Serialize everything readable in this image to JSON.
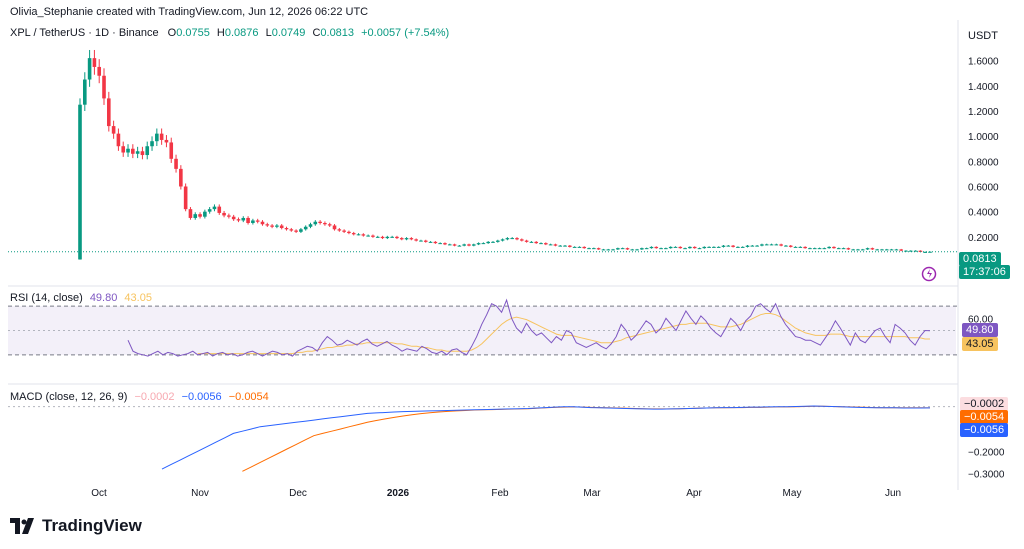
{
  "attribution": "Olivia_Stephanie created with TradingView.com, Jun 12, 2026 06:22 UTC",
  "symbol": "XPL / TetherUS · 1D · Binance",
  "ohlc": {
    "o_label": "O",
    "o": "0.0755",
    "h_label": "H",
    "h": "0.0876",
    "l_label": "L",
    "l": "0.0749",
    "c_label": "C",
    "c": "0.0813",
    "change": "+0.0057 (+7.54%)"
  },
  "currency": "USDT",
  "last_price": "0.0813",
  "countdown": "17:37:06",
  "rsi_legend": {
    "name": "RSI (14, close)",
    "rsi": "49.80",
    "ma": "43.05"
  },
  "rsi_tags": {
    "rsi": "49.80",
    "ma": "43.05"
  },
  "macd_legend": {
    "name": "MACD (close, 12, 26, 9)",
    "hist": "−0.0002",
    "macd": "−0.0056",
    "signal": "−0.0054"
  },
  "macd_tags": {
    "hist": "−0.0002",
    "signal": "−0.0054",
    "macd": "−0.0056"
  },
  "brand": "TradingView",
  "colors": {
    "up": "#089981",
    "down": "#f23645",
    "rsi": "#7e57c2",
    "rsi_ma": "#f7c35f",
    "macd": "#2962ff",
    "signal": "#ff6d00"
  },
  "chart_data": [
    {
      "type": "candlestick",
      "title": "XPL / TetherUS · 1D · Binance",
      "ylabel": "USDT",
      "ylim": [
        0,
        1.78
      ],
      "yticks": [
        "1.6000",
        "1.4000",
        "1.2000",
        "1.0000",
        "0.8000",
        "0.6000",
        "0.4000",
        "0.2000"
      ],
      "xticks": [
        "Oct",
        "Nov",
        "Dec",
        "2026",
        "Feb",
        "Mar",
        "Apr",
        "May",
        "Jun"
      ],
      "closes": [
        1.25,
        1.45,
        1.62,
        1.55,
        1.48,
        1.3,
        1.08,
        1.02,
        0.92,
        0.87,
        0.9,
        0.86,
        0.88,
        0.85,
        0.92,
        0.96,
        1.02,
        0.97,
        0.95,
        0.82,
        0.74,
        0.6,
        0.42,
        0.35,
        0.38,
        0.36,
        0.4,
        0.42,
        0.44,
        0.39,
        0.37,
        0.36,
        0.34,
        0.33,
        0.35,
        0.31,
        0.33,
        0.32,
        0.3,
        0.29,
        0.28,
        0.29,
        0.27,
        0.26,
        0.25,
        0.24,
        0.26,
        0.28,
        0.3,
        0.32,
        0.31,
        0.3,
        0.29,
        0.26,
        0.25,
        0.24,
        0.23,
        0.22,
        0.22,
        0.21,
        0.21,
        0.2,
        0.2,
        0.19,
        0.2,
        0.2,
        0.19,
        0.18,
        0.19,
        0.18,
        0.17,
        0.17,
        0.16,
        0.16,
        0.15,
        0.15,
        0.14,
        0.14,
        0.13,
        0.13,
        0.14,
        0.13,
        0.14,
        0.15,
        0.15,
        0.16,
        0.16,
        0.17,
        0.18,
        0.19,
        0.19,
        0.18,
        0.17,
        0.16,
        0.16,
        0.15,
        0.15,
        0.14,
        0.14,
        0.13,
        0.13,
        0.13,
        0.12,
        0.12,
        0.12,
        0.11,
        0.11,
        0.11,
        0.1,
        0.1,
        0.1,
        0.1,
        0.11,
        0.11,
        0.1,
        0.1,
        0.1,
        0.11,
        0.11,
        0.12,
        0.11,
        0.11,
        0.11,
        0.12,
        0.12,
        0.11,
        0.11,
        0.12,
        0.11,
        0.11,
        0.12,
        0.12,
        0.12,
        0.12,
        0.13,
        0.13,
        0.12,
        0.12,
        0.12,
        0.13,
        0.13,
        0.13,
        0.14,
        0.14,
        0.14,
        0.14,
        0.13,
        0.13,
        0.12,
        0.12,
        0.12,
        0.11,
        0.11,
        0.11,
        0.11,
        0.11,
        0.12,
        0.11,
        0.11,
        0.11,
        0.1,
        0.1,
        0.1,
        0.1,
        0.11,
        0.1,
        0.1,
        0.1,
        0.1,
        0.1,
        0.1,
        0.09,
        0.09,
        0.09,
        0.09,
        0.08,
        0.08,
        0.0813
      ],
      "last": 0.0813
    },
    {
      "type": "line",
      "title": "RSI (14, close)",
      "ylim": [
        20,
        80
      ],
      "yticks": [
        "60.00",
        "40.00"
      ],
      "bands": [
        30,
        70
      ],
      "series": [
        {
          "name": "RSI",
          "values": [
            42,
            33,
            31,
            30,
            29,
            31,
            33,
            30,
            32,
            31,
            29,
            30,
            31,
            33,
            30,
            31,
            32,
            29,
            31,
            32,
            30,
            31,
            29,
            30,
            32,
            33,
            31,
            29,
            31,
            33,
            32,
            30,
            31,
            29,
            33,
            35,
            37,
            36,
            33,
            40,
            45,
            42,
            38,
            39,
            42,
            40,
            38,
            41,
            43,
            39,
            37,
            39,
            41,
            38,
            36,
            33,
            35,
            34,
            33,
            37,
            35,
            32,
            31,
            33,
            30,
            34,
            35,
            32,
            30,
            37,
            45,
            55,
            63,
            72,
            70,
            65,
            75,
            60,
            52,
            48,
            56,
            50,
            46,
            48,
            44,
            40,
            45,
            42,
            50,
            48,
            40,
            38,
            36,
            38,
            40,
            37,
            35,
            39,
            45,
            55,
            50,
            42,
            46,
            52,
            58,
            55,
            48,
            52,
            60,
            55,
            50,
            58,
            66,
            60,
            55,
            62,
            58,
            52,
            48,
            45,
            52,
            60,
            56,
            50,
            58,
            62,
            70,
            72,
            68,
            65,
            72,
            62,
            55,
            50,
            45,
            44,
            42,
            42,
            40,
            38,
            44,
            50,
            58,
            52,
            45,
            38,
            48,
            42,
            40,
            45,
            50,
            52,
            45,
            40,
            55,
            52,
            48,
            42,
            38,
            45,
            50,
            49.8
          ]
        },
        {
          "name": "RSI-based MA",
          "values": [
            null,
            null,
            null,
            null,
            null,
            null,
            null,
            null,
            null,
            null,
            null,
            null,
            null,
            null,
            31,
            31,
            31,
            31,
            31,
            31,
            31,
            31,
            31,
            31,
            31,
            31,
            31,
            31,
            31,
            31,
            31,
            31,
            31,
            31,
            32,
            32,
            33,
            33,
            34,
            35,
            36,
            36,
            37,
            37,
            38,
            38,
            39,
            39,
            40,
            40,
            40,
            40,
            40,
            40,
            39,
            39,
            38,
            37,
            37,
            36,
            36,
            35,
            34,
            34,
            33,
            33,
            33,
            33,
            33,
            34,
            36,
            39,
            43,
            47,
            51,
            55,
            58,
            60,
            61,
            60,
            59,
            57,
            55,
            53,
            51,
            49,
            47,
            46,
            46,
            46,
            45,
            44,
            43,
            42,
            41,
            40,
            40,
            40,
            41,
            42,
            44,
            45,
            46,
            47,
            48,
            49,
            50,
            51,
            52,
            53,
            54,
            55,
            55,
            56,
            56,
            56,
            56,
            55,
            54,
            53,
            53,
            53,
            54,
            55,
            57,
            59,
            61,
            63,
            64,
            64,
            63,
            61,
            58,
            55,
            52,
            50,
            48,
            47,
            46,
            46,
            46,
            47,
            47,
            47,
            46,
            45,
            45,
            45,
            45,
            45,
            45,
            45,
            45,
            45,
            45,
            45,
            45,
            44,
            44,
            44,
            43,
            43.05
          ]
        }
      ]
    },
    {
      "type": "line",
      "title": "MACD (close, 12, 26, 9)",
      "ylim": [
        -0.32,
        0.03
      ],
      "yticks": [
        "−0.2000",
        "−0.3000"
      ],
      "series": [
        {
          "name": "MACD",
          "values": [
            -0.28,
            -0.26,
            -0.24,
            -0.22,
            -0.2,
            -0.18,
            -0.16,
            -0.14,
            -0.12,
            -0.11,
            -0.1,
            -0.09,
            -0.085,
            -0.08,
            -0.075,
            -0.07,
            -0.065,
            -0.06,
            -0.055,
            -0.05,
            -0.045,
            -0.04,
            -0.035,
            -0.03,
            -0.028,
            -0.026,
            -0.024,
            -0.022,
            -0.021,
            -0.02,
            -0.019,
            -0.018,
            -0.017,
            -0.016,
            -0.015,
            -0.014,
            -0.013,
            -0.012,
            -0.011,
            -0.01,
            -0.009,
            -0.008,
            -0.006,
            -0.004,
            -0.002,
            0.0,
            0.0,
            -0.002,
            -0.004,
            -0.005,
            -0.006,
            -0.007,
            -0.008,
            -0.009,
            -0.01,
            -0.011,
            -0.011,
            -0.01,
            -0.009,
            -0.008,
            -0.007,
            -0.006,
            -0.005,
            -0.004,
            -0.004,
            -0.003,
            -0.002,
            -0.002,
            -0.001,
            0.0,
            0.0,
            0.001,
            0.002,
            0.003,
            0.002,
            0.001,
            0.0,
            -0.002,
            -0.003,
            -0.004,
            -0.005,
            -0.005,
            -0.005,
            -0.006,
            -0.006,
            -0.006,
            -0.0056
          ]
        },
        {
          "name": "Signal",
          "values": [
            null,
            null,
            null,
            null,
            null,
            null,
            null,
            null,
            null,
            -0.29,
            -0.27,
            -0.25,
            -0.23,
            -0.21,
            -0.19,
            -0.17,
            -0.15,
            -0.13,
            -0.12,
            -0.11,
            -0.1,
            -0.09,
            -0.08,
            -0.07,
            -0.062,
            -0.055,
            -0.048,
            -0.042,
            -0.036,
            -0.031,
            -0.027,
            -0.024,
            -0.021,
            -0.019,
            -0.017,
            -0.015,
            -0.014,
            -0.013,
            -0.012,
            -0.011,
            -0.01,
            -0.009,
            -0.007,
            -0.005,
            -0.003,
            -0.002,
            -0.001,
            -0.002,
            -0.003,
            -0.004,
            -0.005,
            -0.006,
            -0.007,
            -0.008,
            -0.009,
            -0.01,
            -0.01,
            -0.01,
            -0.009,
            -0.008,
            -0.007,
            -0.006,
            -0.005,
            -0.005,
            -0.004,
            -0.004,
            -0.003,
            -0.003,
            -0.002,
            -0.001,
            -0.001,
            0.0,
            0.001,
            0.002,
            0.002,
            0.001,
            0.0,
            -0.001,
            -0.002,
            -0.003,
            -0.004,
            -0.005,
            -0.005,
            -0.005,
            -0.005,
            -0.005,
            -0.0054
          ]
        }
      ]
    }
  ]
}
